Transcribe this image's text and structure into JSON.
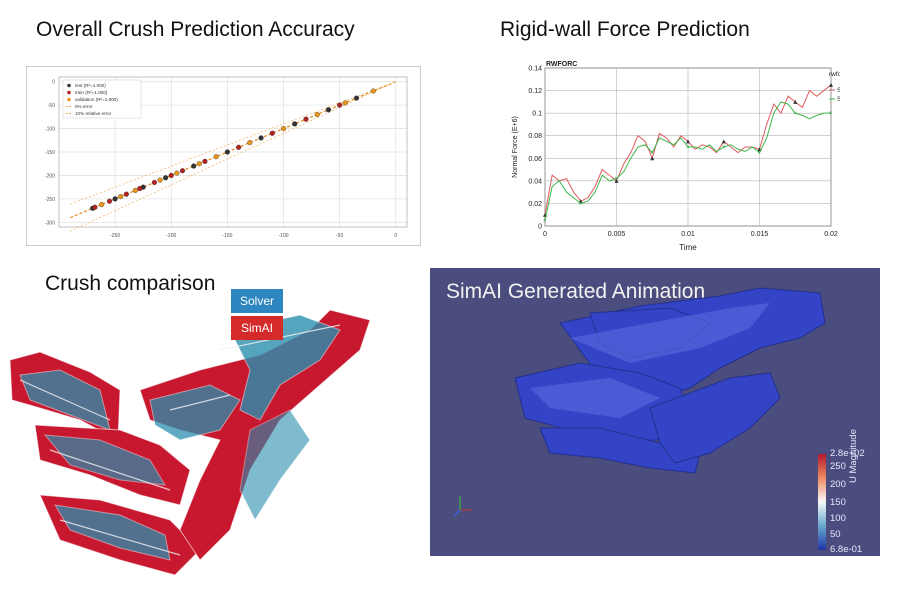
{
  "titles": {
    "accuracy": "Overall Crush Prediction Accuracy",
    "force": "Rigid-wall Force Prediction",
    "crush": "Crush comparison",
    "animation": "SimAI Generated Animation"
  },
  "crush_legend": {
    "solver": "Solver",
    "simai": "SimAI"
  },
  "colors": {
    "solver": "#2e86c1",
    "simai": "#d42a2a",
    "anim_bg": "#4b4d7e",
    "model_blue": "#3446c8"
  },
  "chart_data": [
    {
      "type": "scatter",
      "title": "",
      "xlabel": "",
      "ylabel": "",
      "legend": [
        "test (R²=1.000)",
        "train (R²=1.000)",
        "validation (R²=1.000)",
        "0% error",
        "10% relative error"
      ],
      "legend_position": "top-left",
      "xticks": [
        "-250",
        "-200",
        "-150",
        "-100",
        "-50",
        "0"
      ],
      "yticks": [
        "0",
        "-50",
        "-100",
        "-150",
        "-200",
        "-250",
        "-300"
      ],
      "xlim": [
        -300,
        10
      ],
      "ylim": [
        -310,
        10
      ],
      "series": [
        {
          "name": "test (R²=1.000)",
          "x": [
            -270,
            -250,
            -225,
            -205,
            -180,
            -150,
            -120,
            -90,
            -60,
            -35
          ],
          "y": [
            -270,
            -250,
            -225,
            -205,
            -180,
            -150,
            -120,
            -90,
            -60,
            -35
          ]
        },
        {
          "name": "train (R²=1.000)",
          "x": [
            -268,
            -255,
            -240,
            -228,
            -215,
            -200,
            -190,
            -170,
            -140,
            -110,
            -80,
            -50
          ],
          "y": [
            -268,
            -255,
            -240,
            -228,
            -215,
            -200,
            -190,
            -170,
            -140,
            -110,
            -80,
            -50
          ]
        },
        {
          "name": "validation (R²=1.000)",
          "x": [
            -262,
            -245,
            -232,
            -210,
            -195,
            -175,
            -160,
            -130,
            -100,
            -70,
            -45,
            -20
          ],
          "y": [
            -262,
            -245,
            -232,
            -210,
            -195,
            -175,
            -160,
            -130,
            -100,
            -70,
            -45,
            -20
          ]
        }
      ],
      "grid": true
    },
    {
      "type": "line",
      "title": "RWFORC",
      "xlabel": "Time",
      "ylabel": "Normal Force (E+6)",
      "legend_title": "rwforc/forces",
      "xticks": [
        "0",
        "0.005",
        "0.01",
        "0.015",
        "0.02"
      ],
      "yticks": [
        "0",
        "0.02",
        "0.04",
        "0.06",
        "0.08",
        "0.1",
        "0.12",
        "0.14"
      ],
      "xlim": [
        0,
        0.02
      ],
      "ylim": [
        0,
        0.14
      ],
      "series": [
        {
          "name": "Solver",
          "x": [
            0,
            0.0005,
            0.001,
            0.0015,
            0.002,
            0.0025,
            0.003,
            0.0035,
            0.004,
            0.0045,
            0.005,
            0.0055,
            0.006,
            0.0065,
            0.007,
            0.0075,
            0.008,
            0.0085,
            0.009,
            0.0095,
            0.01,
            0.0105,
            0.011,
            0.0115,
            0.012,
            0.0125,
            0.013,
            0.0135,
            0.014,
            0.0145,
            0.015,
            0.0155,
            0.016,
            0.0165,
            0.017,
            0.0175,
            0.018,
            0.0185,
            0.019,
            0.0195,
            0.02
          ],
          "y": [
            0.01,
            0.045,
            0.04,
            0.042,
            0.03,
            0.022,
            0.025,
            0.035,
            0.05,
            0.045,
            0.04,
            0.055,
            0.065,
            0.08,
            0.075,
            0.06,
            0.082,
            0.078,
            0.07,
            0.08,
            0.075,
            0.068,
            0.072,
            0.07,
            0.065,
            0.075,
            0.07,
            0.065,
            0.07,
            0.07,
            0.068,
            0.09,
            0.108,
            0.1,
            0.115,
            0.11,
            0.105,
            0.12,
            0.115,
            0.12,
            0.125
          ]
        },
        {
          "name": "SimAI predi",
          "x": [
            0,
            0.0005,
            0.001,
            0.0015,
            0.002,
            0.0025,
            0.003,
            0.0035,
            0.004,
            0.0045,
            0.005,
            0.0055,
            0.006,
            0.0065,
            0.007,
            0.0075,
            0.008,
            0.0085,
            0.009,
            0.0095,
            0.01,
            0.0105,
            0.011,
            0.0115,
            0.012,
            0.0125,
            0.013,
            0.0135,
            0.014,
            0.0145,
            0.015,
            0.0155,
            0.016,
            0.0165,
            0.017,
            0.0175,
            0.018,
            0.0185,
            0.019,
            0.0195,
            0.02
          ],
          "y": [
            0.005,
            0.035,
            0.04,
            0.03,
            0.025,
            0.02,
            0.022,
            0.03,
            0.045,
            0.04,
            0.042,
            0.048,
            0.06,
            0.07,
            0.072,
            0.065,
            0.078,
            0.075,
            0.072,
            0.078,
            0.07,
            0.07,
            0.068,
            0.072,
            0.066,
            0.07,
            0.072,
            0.068,
            0.066,
            0.07,
            0.065,
            0.078,
            0.1,
            0.11,
            0.108,
            0.1,
            0.098,
            0.095,
            0.098,
            0.1,
            0.1
          ]
        }
      ],
      "grid": true
    }
  ],
  "colorbar": {
    "title": "U Magnitude",
    "max_label": "2.8e+02",
    "min_label": "6.8e-01",
    "ticks": [
      "250",
      "200",
      "150",
      "100",
      "50"
    ]
  }
}
